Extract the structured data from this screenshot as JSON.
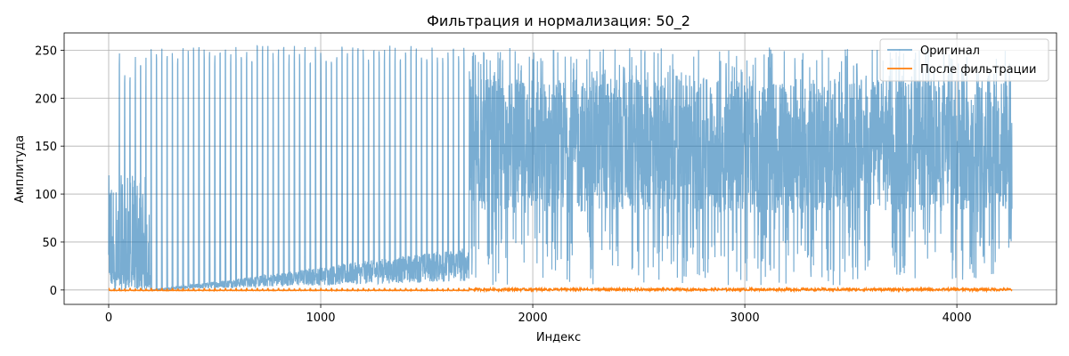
{
  "chart_data": {
    "type": "line",
    "title": "Фильтрация и нормализация: 50_2",
    "xlabel": "Индекс",
    "ylabel": "Амплитуда",
    "xlim": [
      -210,
      4470
    ],
    "ylim": [
      -15,
      268
    ],
    "xticks": [
      0,
      1000,
      2000,
      3000,
      4000
    ],
    "yticks": [
      0,
      50,
      100,
      150,
      200,
      250
    ],
    "xtick_labels": [
      "0",
      "1000",
      "2000",
      "3000",
      "4000"
    ],
    "ytick_labels": [
      "0",
      "50",
      "100",
      "150",
      "200",
      "250"
    ],
    "grid": true,
    "legend_position": "top-right",
    "x_range": [
      0,
      4260
    ],
    "series": [
      {
        "name": "Оригинал",
        "color": "#1f77b4",
        "alpha": 0.6,
        "description_segments": [
          {
            "x_start": 0,
            "x_end": 200,
            "low": 0,
            "high": 120,
            "spikes_to": 250
          },
          {
            "x_start": 200,
            "x_end": 1700,
            "low_trend": [
              0,
              45
            ],
            "high": 250,
            "pattern": "periodic spikes"
          },
          {
            "x_start": 1700,
            "x_end": 4260,
            "low": 5,
            "high": 250,
            "dense_band": [
              80,
              220
            ]
          }
        ]
      },
      {
        "name": "После фильтрации",
        "color": "#ff7f0e",
        "alpha": 1.0,
        "value_range": [
          -1,
          2
        ]
      }
    ]
  }
}
